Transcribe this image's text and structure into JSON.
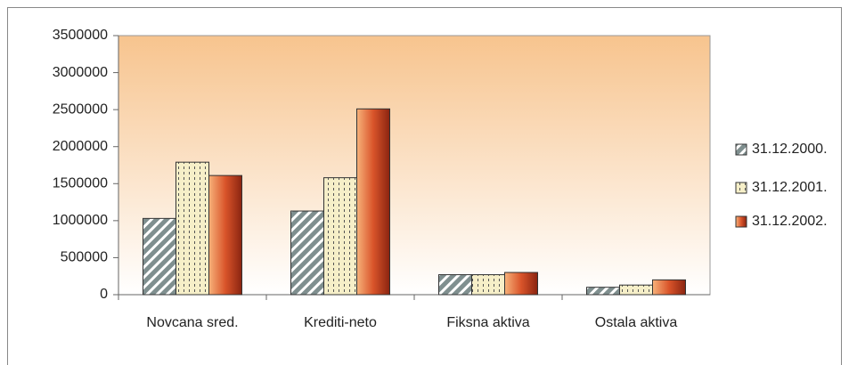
{
  "chart_data": {
    "type": "bar",
    "categories": [
      "Novcana sred.",
      "Krediti-neto",
      "Fiksna aktiva",
      "Ostala aktiva"
    ],
    "series": [
      {
        "name": "31.12.2000.",
        "color": "#7f8f8f",
        "values": [
          1030000,
          1130000,
          270000,
          100000
        ]
      },
      {
        "name": "31.12.2001.",
        "color": "#f6efc8",
        "values": [
          1790000,
          1580000,
          270000,
          130000
        ]
      },
      {
        "name": "31.12.2002.",
        "color": "#d9542a",
        "values": [
          1610000,
          2510000,
          300000,
          200000
        ]
      }
    ],
    "ylim": [
      0,
      3500000
    ],
    "yticks": [
      0,
      500000,
      1000000,
      1500000,
      2000000,
      2500000,
      3000000,
      3500000
    ],
    "legend": "right"
  }
}
